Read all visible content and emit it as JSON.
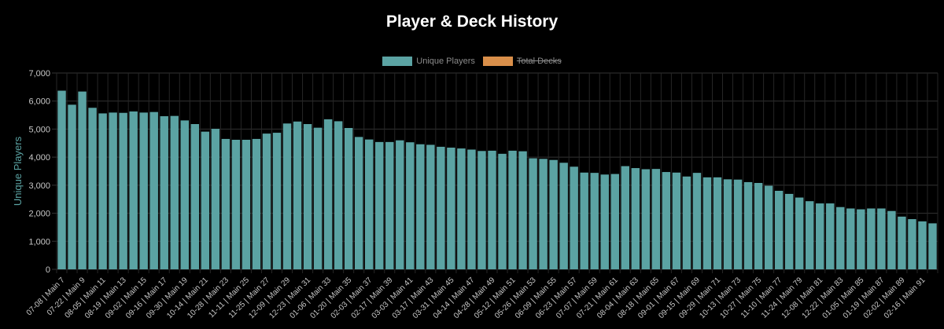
{
  "title": "Player & Deck History",
  "legend": [
    {
      "label": "Unique Players",
      "color": "#5ba3a3",
      "hidden": false
    },
    {
      "label": "Total Decks",
      "color": "#d98f4a",
      "hidden": true
    }
  ],
  "colors": {
    "background": "#000000",
    "bar": "#5ba3a3",
    "grid": "#333333",
    "axis_text": "#c8c8c8",
    "ylabel": "#5ba3a3"
  },
  "chart_data": {
    "type": "bar",
    "title": "Player & Deck History",
    "xlabel": "",
    "ylabel": "Unique Players",
    "ylim": [
      0,
      7000
    ],
    "yticks": [
      "0",
      "1,000",
      "2,000",
      "3,000",
      "4,000",
      "5,000",
      "6,000",
      "7,000"
    ],
    "grid": true,
    "legend_position": "top",
    "categories": [
      "07-08 | Main 7",
      "",
      "07-22 | Main 9",
      "",
      "08-05 | Main 11",
      "",
      "08-19 | Main 13",
      "",
      "09-02 | Main 15",
      "",
      "09-16 | Main 17",
      "",
      "09-30 | Main 19",
      "",
      "10-14 | Main 21",
      "",
      "10-28 | Main 23",
      "",
      "11-11 | Main 25",
      "",
      "11-25 | Main 27",
      "",
      "12-09 | Main 29",
      "",
      "12-23 | Main 31",
      "",
      "01-06 | Main 33",
      "",
      "01-20 | Main 35",
      "",
      "02-03 | Main 37",
      "",
      "02-17 | Main 39",
      "",
      "03-03 | Main 41",
      "",
      "03-17 | Main 43",
      "",
      "03-31 | Main 45",
      "",
      "04-14 | Main 47",
      "",
      "04-28 | Main 49",
      "",
      "05-12 | Main 51",
      "",
      "05-26 | Main 53",
      "",
      "06-09 | Main 55",
      "",
      "06-23 | Main 57",
      "",
      "07-07 | Main 59",
      "",
      "07-21 | Main 61",
      "",
      "08-04 | Main 63",
      "",
      "08-18 | Main 65",
      "",
      "09-01 | Main 67",
      "",
      "09-15 | Main 69",
      "",
      "09-29 | Main 71",
      "",
      "10-13 | Main 73",
      "",
      "10-27 | Main 75",
      "",
      "11-10 | Main 77",
      "",
      "11-24 | Main 79",
      "",
      "12-08 | Main 81",
      "",
      "12-22 | Main 83",
      "",
      "01-05 | Main 85",
      "",
      "01-19 | Main 87",
      "",
      "02-02 | Main 89",
      "",
      "02-16 | Main 91",
      ""
    ],
    "series": [
      {
        "name": "Unique Players",
        "values": [
          6370,
          5870,
          6340,
          5760,
          5560,
          5590,
          5580,
          5630,
          5590,
          5610,
          5460,
          5470,
          5310,
          5180,
          4910,
          5010,
          4650,
          4620,
          4620,
          4650,
          4840,
          4870,
          5200,
          5270,
          5180,
          5050,
          5350,
          5280,
          5040,
          4720,
          4630,
          4540,
          4540,
          4600,
          4530,
          4460,
          4440,
          4370,
          4340,
          4310,
          4270,
          4220,
          4230,
          4120,
          4230,
          4210,
          3960,
          3940,
          3900,
          3800,
          3660,
          3450,
          3440,
          3380,
          3400,
          3680,
          3610,
          3570,
          3580,
          3470,
          3450,
          3310,
          3440,
          3280,
          3280,
          3210,
          3200,
          3110,
          3080,
          2980,
          2800,
          2690,
          2560,
          2430,
          2350,
          2350,
          2220,
          2170,
          2140,
          2170,
          2170,
          2080,
          1880,
          1790,
          1710,
          1640
        ]
      },
      {
        "name": "Total Decks",
        "hidden": true
      }
    ]
  }
}
